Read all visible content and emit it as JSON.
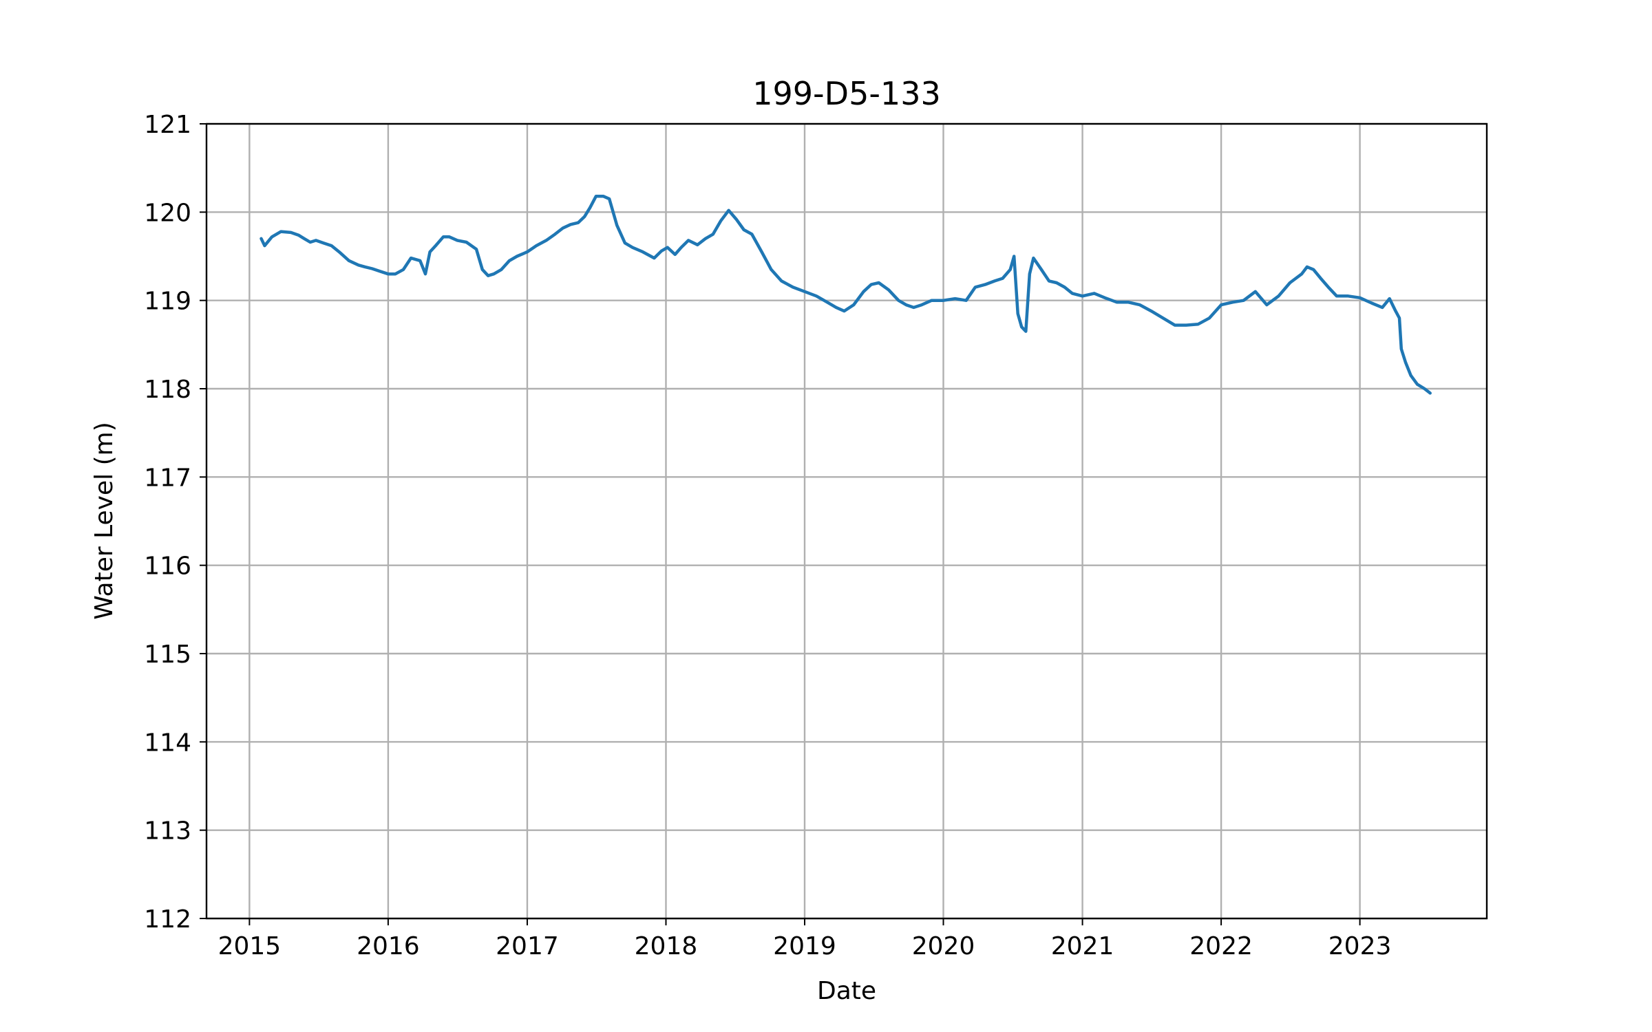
{
  "chart_data": {
    "type": "line",
    "title": "199-D5-133",
    "xlabel": "Date",
    "ylabel": "Water Level (m)",
    "xlim": [
      "2014-09-10",
      "2023-12-01"
    ],
    "ylim": [
      112,
      121
    ],
    "grid": true,
    "x_ticks": [
      "2015",
      "2016",
      "2017",
      "2018",
      "2019",
      "2020",
      "2021",
      "2022",
      "2023"
    ],
    "y_ticks": [
      "112",
      "113",
      "114",
      "115",
      "116",
      "117",
      "118",
      "119",
      "120",
      "121"
    ],
    "colors": {
      "line": "#1f77b4",
      "grid": "#b0b0b0",
      "axes": "#000000"
    },
    "series": [
      {
        "x": [
          "2015-02-01",
          "2015-02-10",
          "2015-03-01",
          "2015-03-25",
          "2015-04-20",
          "2015-05-10",
          "2015-05-25",
          "2015-06-10",
          "2015-06-25",
          "2015-07-15",
          "2015-08-05",
          "2015-08-25",
          "2015-09-20",
          "2015-10-15",
          "2015-11-01",
          "2015-11-20",
          "2015-12-10",
          "2016-01-01",
          "2016-01-20",
          "2016-02-10",
          "2016-03-01",
          "2016-03-25",
          "2016-04-08",
          "2016-04-20",
          "2016-05-05",
          "2016-05-25",
          "2016-06-10",
          "2016-07-01",
          "2016-07-25",
          "2016-08-20",
          "2016-09-05",
          "2016-09-20",
          "2016-10-05",
          "2016-10-25",
          "2016-11-15",
          "2016-12-05",
          "2017-01-01",
          "2017-01-25",
          "2017-02-20",
          "2017-03-15",
          "2017-04-05",
          "2017-04-25",
          "2017-05-15",
          "2017-06-01",
          "2017-06-15",
          "2017-07-01",
          "2017-07-20",
          "2017-08-05",
          "2017-08-25",
          "2017-09-15",
          "2017-10-05",
          "2017-11-01",
          "2017-12-01",
          "2017-12-20",
          "2018-01-05",
          "2018-01-25",
          "2018-02-10",
          "2018-03-01",
          "2018-03-25",
          "2018-04-15",
          "2018-05-05",
          "2018-05-25",
          "2018-06-15",
          "2018-07-05",
          "2018-07-25",
          "2018-08-15",
          "2018-09-10",
          "2018-10-05",
          "2018-11-01",
          "2018-12-01",
          "2019-01-01",
          "2019-02-01",
          "2019-03-01",
          "2019-03-25",
          "2019-04-15",
          "2019-05-10",
          "2019-06-05",
          "2019-06-25",
          "2019-07-15",
          "2019-08-10",
          "2019-09-05",
          "2019-09-25",
          "2019-10-15",
          "2019-11-05",
          "2019-12-01",
          "2020-01-01",
          "2020-02-01",
          "2020-03-01",
          "2020-03-25",
          "2020-04-20",
          "2020-05-15",
          "2020-06-05",
          "2020-06-25",
          "2020-07-05",
          "2020-07-15",
          "2020-07-25",
          "2020-08-05",
          "2020-08-15",
          "2020-08-25",
          "2020-09-15",
          "2020-10-05",
          "2020-10-25",
          "2020-11-15",
          "2020-12-05",
          "2021-01-01",
          "2021-02-01",
          "2021-03-01",
          "2021-04-01",
          "2021-05-01",
          "2021-06-01",
          "2021-07-01",
          "2021-08-01",
          "2021-09-01",
          "2021-10-01",
          "2021-11-01",
          "2021-12-01",
          "2022-01-01",
          "2022-02-01",
          "2022-03-01",
          "2022-04-01",
          "2022-05-01",
          "2022-06-01",
          "2022-07-01",
          "2022-08-01",
          "2022-08-15",
          "2022-09-01",
          "2022-09-20",
          "2022-10-10",
          "2022-11-01",
          "2022-12-01",
          "2023-01-01",
          "2023-02-01",
          "2023-03-01",
          "2023-03-20",
          "2023-04-05",
          "2023-04-15",
          "2023-04-20",
          "2023-05-01",
          "2023-05-15",
          "2023-06-01",
          "2023-06-20",
          "2023-07-05"
        ],
        "y": [
          119.7,
          119.62,
          119.72,
          119.78,
          119.77,
          119.74,
          119.7,
          119.66,
          119.68,
          119.65,
          119.62,
          119.55,
          119.45,
          119.4,
          119.38,
          119.36,
          119.33,
          119.3,
          119.3,
          119.35,
          119.48,
          119.45,
          119.3,
          119.55,
          119.62,
          119.72,
          119.72,
          119.68,
          119.66,
          119.58,
          119.35,
          119.28,
          119.3,
          119.35,
          119.45,
          119.5,
          119.55,
          119.62,
          119.68,
          119.75,
          119.82,
          119.86,
          119.88,
          119.95,
          120.05,
          120.18,
          120.18,
          120.15,
          119.85,
          119.65,
          119.6,
          119.55,
          119.48,
          119.56,
          119.6,
          119.52,
          119.6,
          119.68,
          119.63,
          119.7,
          119.75,
          119.9,
          120.02,
          119.92,
          119.8,
          119.75,
          119.55,
          119.35,
          119.22,
          119.15,
          119.1,
          119.05,
          118.98,
          118.92,
          118.88,
          118.95,
          119.1,
          119.18,
          119.2,
          119.12,
          119.0,
          118.95,
          118.92,
          118.95,
          119.0,
          119.0,
          119.02,
          119.0,
          119.15,
          119.18,
          119.22,
          119.25,
          119.35,
          119.5,
          118.85,
          118.7,
          118.65,
          119.3,
          119.48,
          119.35,
          119.22,
          119.2,
          119.15,
          119.08,
          119.05,
          119.08,
          119.03,
          118.98,
          118.98,
          118.95,
          118.88,
          118.8,
          118.72,
          118.72,
          118.73,
          118.8,
          118.95,
          118.98,
          119.0,
          119.1,
          118.95,
          119.05,
          119.2,
          119.3,
          119.38,
          119.35,
          119.25,
          119.15,
          119.05,
          119.05,
          119.03,
          118.97,
          118.92,
          119.02,
          118.88,
          118.8,
          118.45,
          118.3,
          118.15,
          118.05,
          118.0,
          117.95
        ]
      }
    ]
  }
}
